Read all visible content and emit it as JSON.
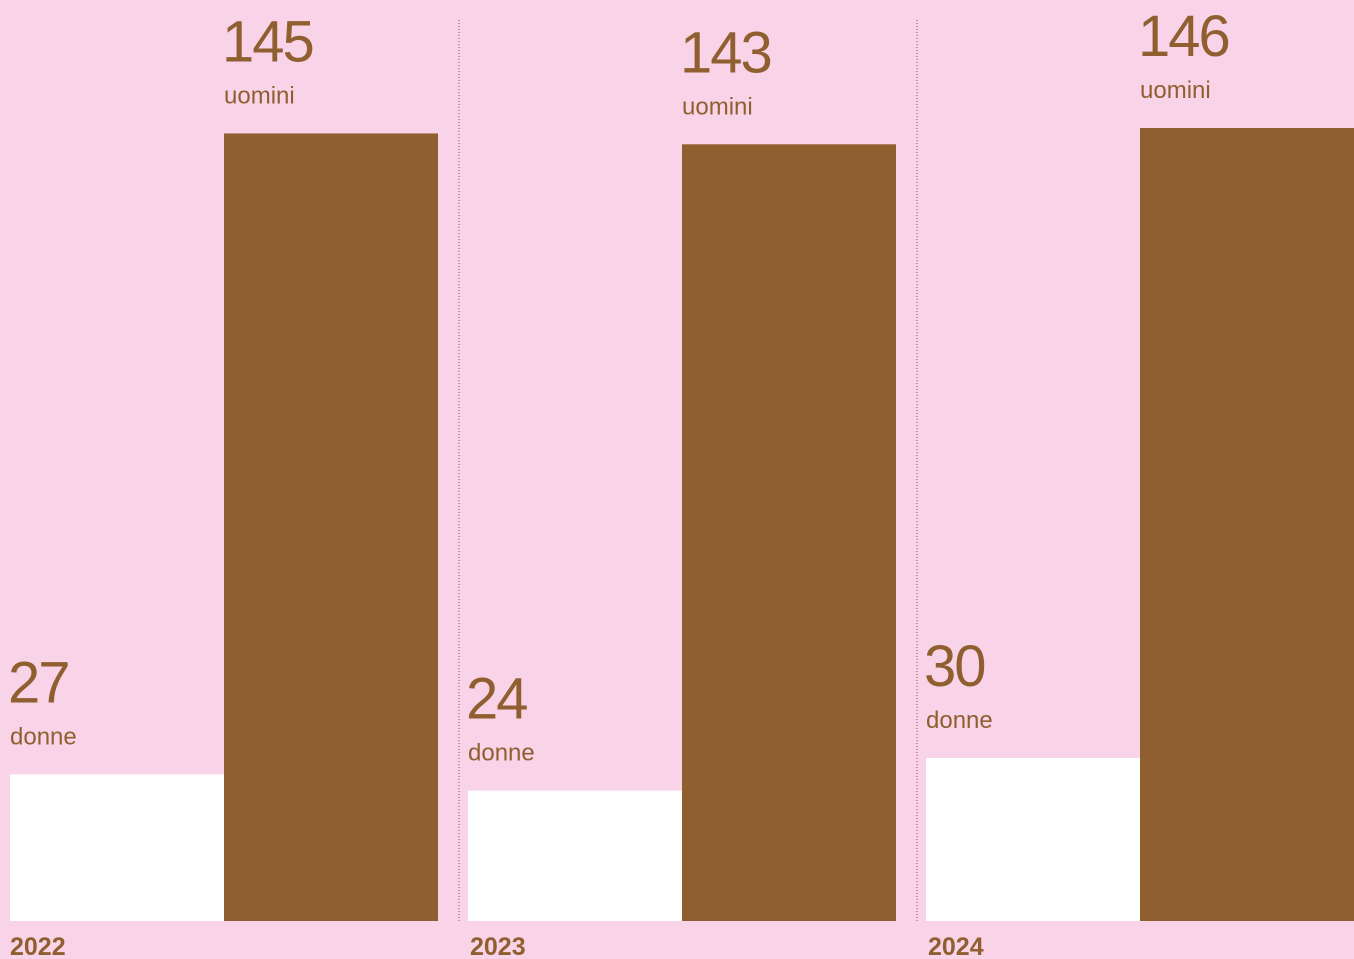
{
  "chart_data": {
    "type": "bar",
    "categories": [
      "2022",
      "2023",
      "2024"
    ],
    "series": [
      {
        "name": "donne",
        "color": "#ffffff",
        "values": [
          27,
          24,
          30
        ]
      },
      {
        "name": "uomini",
        "color": "#8f5f2f",
        "values": [
          145,
          143,
          146
        ]
      }
    ]
  }
}
